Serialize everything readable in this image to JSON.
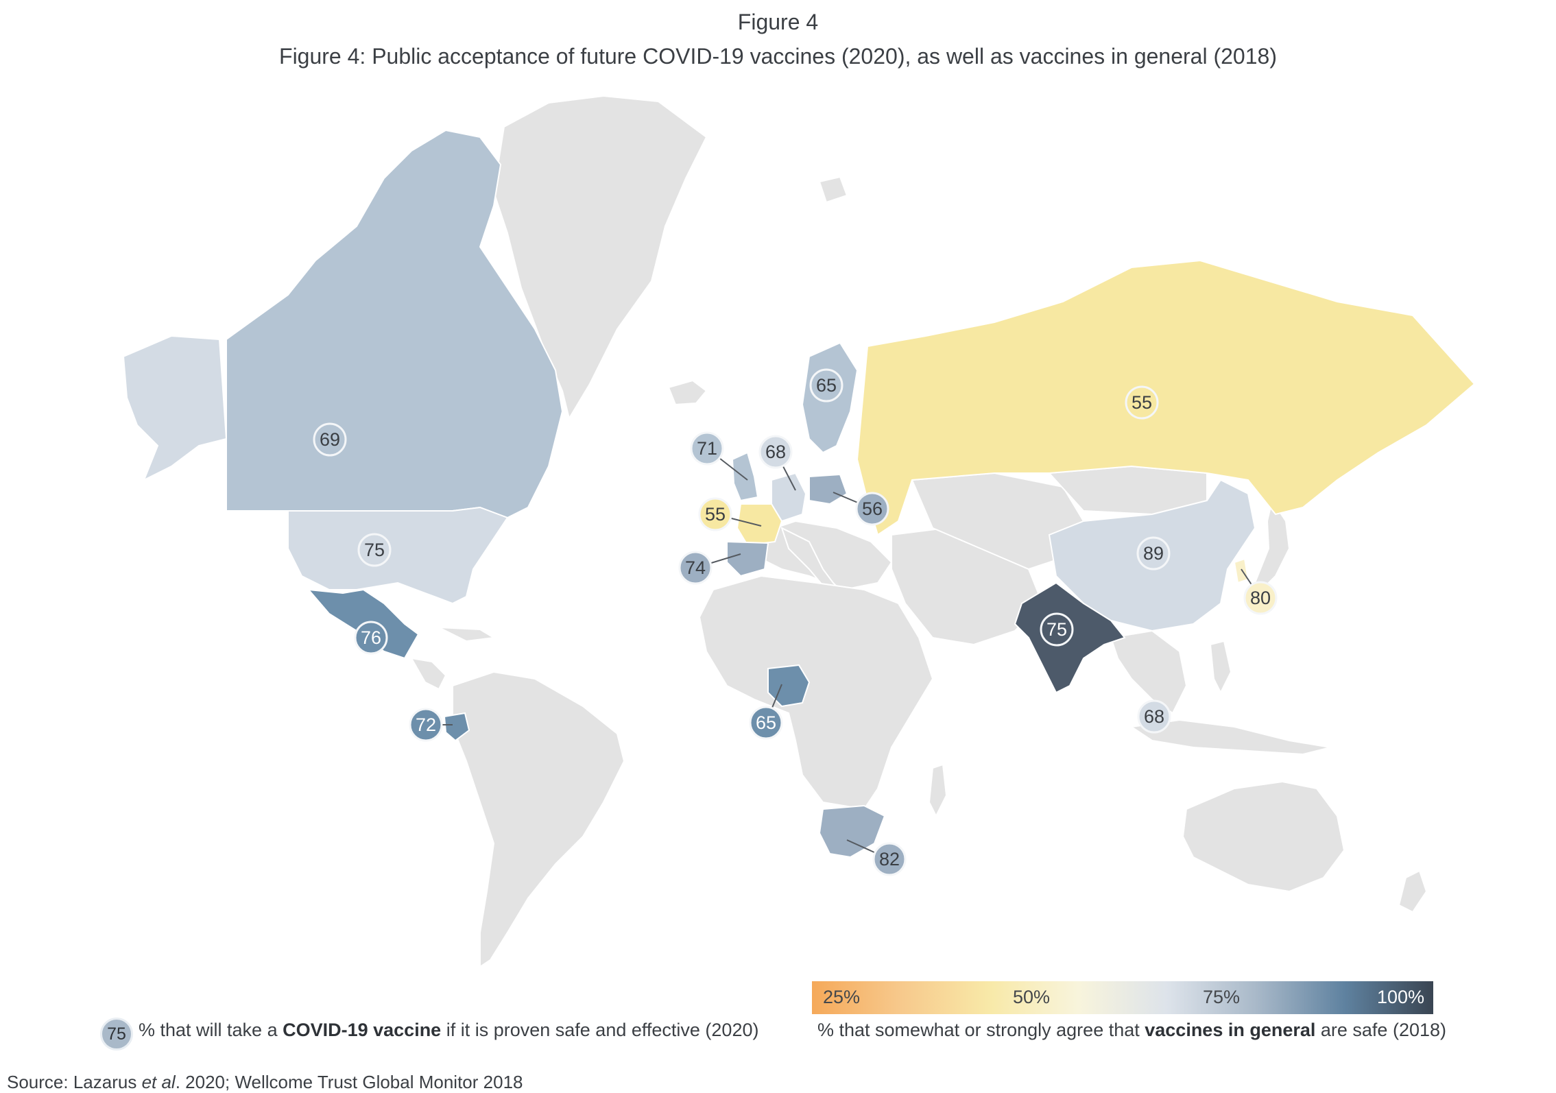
{
  "header": {
    "figure_label": "Figure 4",
    "title": "Figure 4: Public acceptance of future COVID-19 vaccines (2020), as well as vaccines in general (2018)"
  },
  "map_data": {
    "colors": {
      "background": "#ffffff",
      "no_data": "#e3e3e3",
      "yellow": "#f7e8a2",
      "pale_yellow": "#f9f0c9",
      "light_blue": "#d3dbe4",
      "mid_blue": "#b4c4d3",
      "blue_grey": "#9dafc2",
      "steel_blue": "#6d8fab",
      "dark_slate": "#4d5a6a"
    },
    "countries": [
      {
        "country": "Canada",
        "covid_2020": 69,
        "safe_2018_color": "mid_blue"
      },
      {
        "country": "United States",
        "covid_2020": 75,
        "safe_2018_color": "light_blue"
      },
      {
        "country": "Mexico",
        "covid_2020": 76,
        "safe_2018_color": "steel_blue"
      },
      {
        "country": "Ecuador",
        "covid_2020": 72,
        "safe_2018_color": "steel_blue"
      },
      {
        "country": "United Kingdom",
        "covid_2020": 71,
        "safe_2018_color": "mid_blue"
      },
      {
        "country": "Germany",
        "covid_2020": 68,
        "safe_2018_color": "light_blue"
      },
      {
        "country": "Sweden",
        "covid_2020": 65,
        "safe_2018_color": "mid_blue"
      },
      {
        "country": "France",
        "covid_2020": 55,
        "safe_2018_color": "yellow"
      },
      {
        "country": "Spain",
        "covid_2020": 74,
        "safe_2018_color": "blue_grey"
      },
      {
        "country": "Poland",
        "covid_2020": 56,
        "safe_2018_color": "blue_grey"
      },
      {
        "country": "Russia",
        "covid_2020": 55,
        "safe_2018_color": "yellow"
      },
      {
        "country": "China",
        "covid_2020": 89,
        "safe_2018_color": "light_blue"
      },
      {
        "country": "South Korea",
        "covid_2020": 80,
        "safe_2018_color": "pale_yellow"
      },
      {
        "country": "India",
        "covid_2020": 75,
        "safe_2018_color": "dark_slate"
      },
      {
        "country": "Singapore",
        "covid_2020": 68,
        "safe_2018_color": "light_blue"
      },
      {
        "country": "Nigeria",
        "covid_2020": 65,
        "safe_2018_color": "steel_blue"
      },
      {
        "country": "South Africa",
        "covid_2020": 82,
        "safe_2018_color": "blue_grey"
      }
    ]
  },
  "legend": {
    "gradient_stops": [
      "#f5a95a",
      "#f7c98c",
      "#f8e9a8",
      "#f8f4dc",
      "#dde3ea",
      "#a9b9c9",
      "#5f82a0",
      "#3a4552"
    ],
    "ticks": [
      "25%",
      "50%",
      "75%",
      "100%"
    ],
    "bubble_value": "75",
    "bubble_caption_pre": "% that will take a ",
    "bubble_caption_bold": "COVID-19 vaccine",
    "bubble_caption_post": " if it is proven safe and effective (2020)",
    "scale_caption_pre": "% that somewhat or strongly agree that ",
    "scale_caption_bold": "vaccines in general",
    "scale_caption_post": " are safe (2018)"
  },
  "source": {
    "pre": "Source: Lazarus ",
    "italic": "et al",
    "post": ". 2020; Wellcome Trust Global Monitor 2018"
  }
}
